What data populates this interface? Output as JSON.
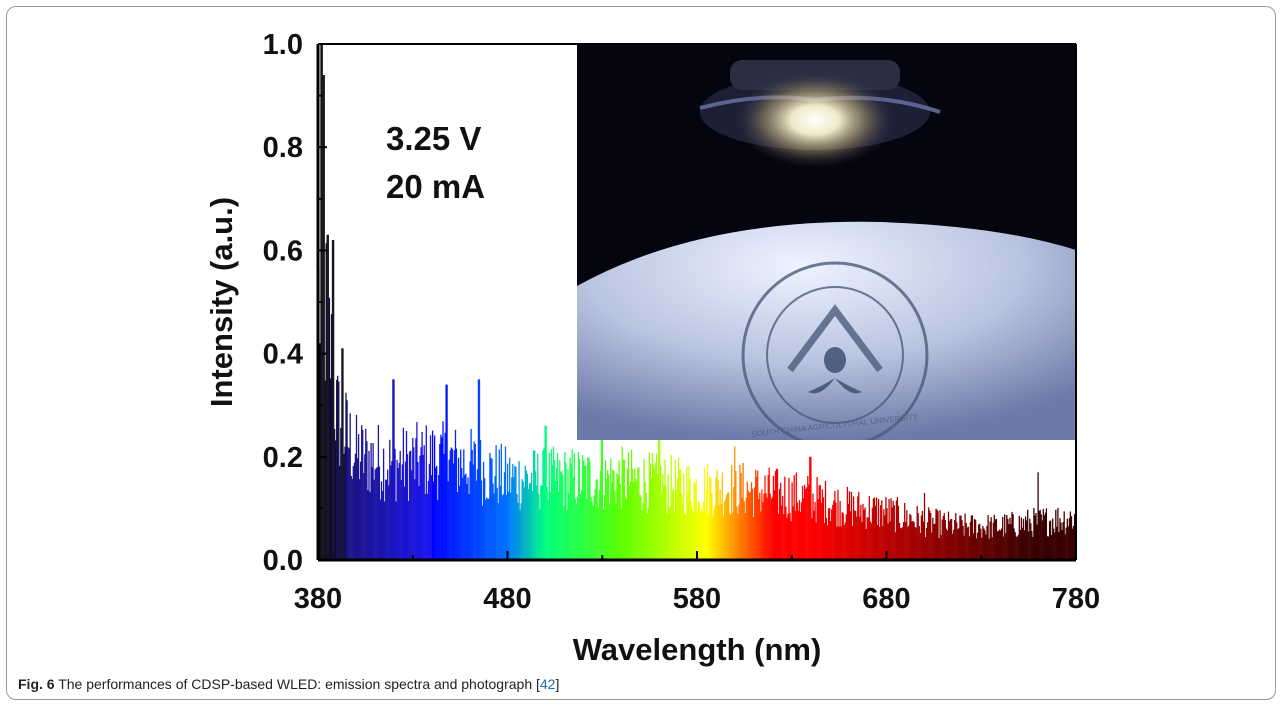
{
  "figure": {
    "caption_label": "Fig. 6",
    "caption_text": " The performances of CDSP-based WLED: emission spectra and photograph [",
    "caption_ref": "42",
    "caption_end": "]"
  },
  "chart_data": {
    "type": "bar",
    "xlabel": "Wavelength (nm)",
    "ylabel": "Intensity (a.u.)",
    "xlim": [
      380,
      780
    ],
    "ylim": [
      0.0,
      1.0
    ],
    "x_ticks": [
      "380",
      "480",
      "580",
      "680",
      "780"
    ],
    "y_ticks": [
      "0.0",
      "0.2",
      "0.4",
      "0.6",
      "0.8",
      "1.0"
    ],
    "annotations": [
      "3.25 V",
      "20 mA"
    ],
    "bar_color": "spectral (wavelength-mapped: blue → cyan → green → yellow → red → dark red)",
    "peaks": [
      {
        "x": 382,
        "y": 1.0
      },
      {
        "x": 383,
        "y": 0.94
      },
      {
        "x": 385,
        "y": 0.63
      },
      {
        "x": 388,
        "y": 0.62
      },
      {
        "x": 393,
        "y": 0.41
      },
      {
        "x": 420,
        "y": 0.35
      },
      {
        "x": 448,
        "y": 0.34
      },
      {
        "x": 465,
        "y": 0.35
      },
      {
        "x": 500,
        "y": 0.26
      },
      {
        "x": 530,
        "y": 0.26
      },
      {
        "x": 560,
        "y": 0.24
      },
      {
        "x": 600,
        "y": 0.22
      },
      {
        "x": 640,
        "y": 0.2
      },
      {
        "x": 700,
        "y": 0.13
      },
      {
        "x": 760,
        "y": 0.17
      }
    ],
    "envelope": {
      "x": [
        380,
        385,
        390,
        400,
        420,
        440,
        460,
        480,
        500,
        520,
        540,
        560,
        580,
        600,
        620,
        640,
        660,
        680,
        700,
        720,
        740,
        760,
        780
      ],
      "y": [
        0.55,
        0.5,
        0.3,
        0.22,
        0.2,
        0.21,
        0.2,
        0.17,
        0.17,
        0.17,
        0.17,
        0.16,
        0.15,
        0.15,
        0.14,
        0.13,
        0.11,
        0.1,
        0.08,
        0.07,
        0.07,
        0.08,
        0.09
      ]
    }
  },
  "inset_photo": {
    "seal_text": "SOUTH CHINA AGRICULTURAL UNIVERSITY"
  }
}
